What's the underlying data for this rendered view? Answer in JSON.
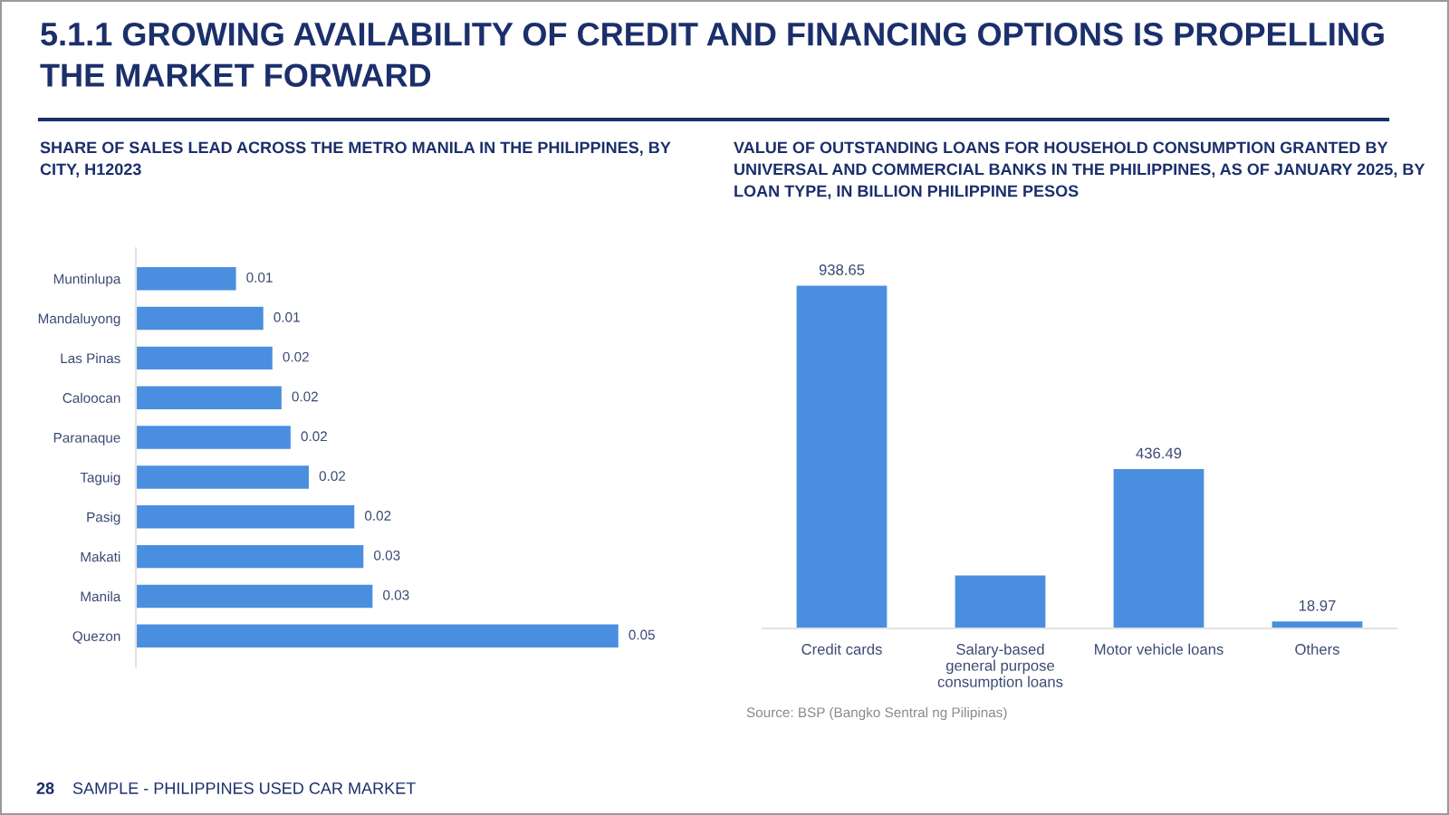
{
  "chart_data": [
    {
      "type": "other",
      "title": "5.1.1 GROWING AVAILABILITY OF CREDIT AND FINANCING OPTIONS IS PROPELLING THE MARKET FORWARD",
      "annotations": [
        "28",
        "SAMPLE - PHILIPPINES USED CAR MARKET"
      ]
    },
    {
      "type": "bar",
      "orientation": "horizontal",
      "title": "SHARE OF SALES LEAD ACROSS THE METRO MANILA IN THE PHILIPPINES, BY CITY, H12023",
      "categories": [
        "Muntinlupa",
        "Mandaluyong",
        "Las Pinas",
        "Caloocan",
        "Paranaque",
        "Taguig",
        "Pasig",
        "Makati",
        "Manila",
        "Quezon"
      ],
      "values": [
        0.011,
        0.014,
        0.015,
        0.016,
        0.017,
        0.019,
        0.024,
        0.025,
        0.026,
        0.053
      ],
      "value_labels": [
        "0.01",
        "0.01",
        "0.02",
        "0.02",
        "0.02",
        "0.02",
        "0.02",
        "0.03",
        "0.03",
        "0.05"
      ],
      "color": "#4a8fdf",
      "tick_labels": "y"
    },
    {
      "type": "bar",
      "title": "VALUE OF OUTSTANDING LOANS FOR HOUSEHOLD CONSUMPTION GRANTED BY UNIVERSAL AND COMMERCIAL BANKS IN THE PHILIPPINES, AS OF JANUARY 2025, BY LOAN TYPE, IN BILLION PHILIPPINE PESOS",
      "categories": [
        "Credit cards",
        "Salary-based general purpose consumption loans",
        "Motor vehicle loans",
        "Others"
      ],
      "values": [
        938.65,
        145,
        436.49,
        18.97
      ],
      "value_labels": [
        "938.65",
        null,
        "436.49",
        "18.97"
      ],
      "color": "#4a8fdf",
      "tick_labels": "x",
      "annotations": [
        "Source: BSP (Bangko Sentral ng Pilipinas)"
      ]
    }
  ]
}
